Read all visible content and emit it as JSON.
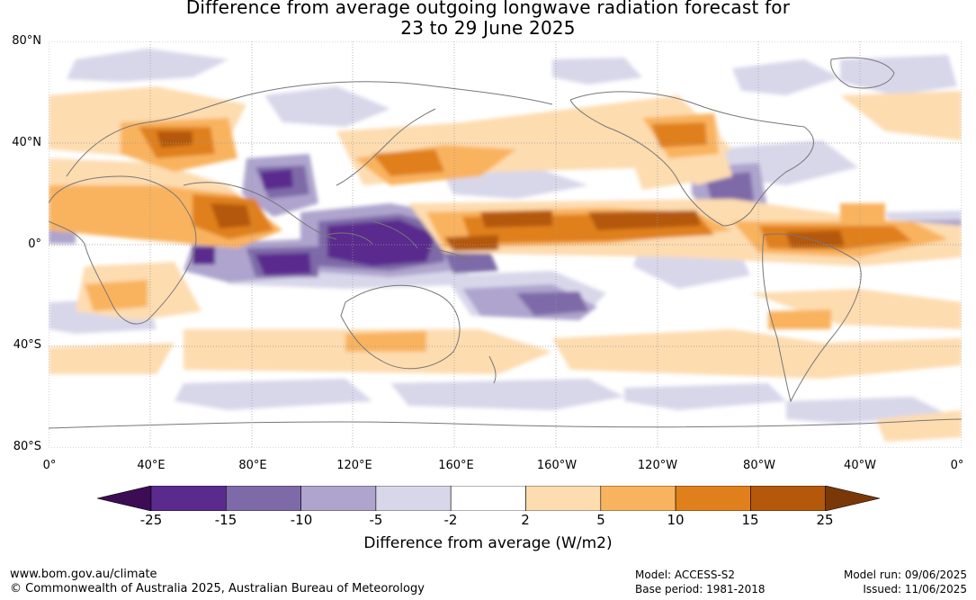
{
  "title": {
    "line1": "Difference from average outgoing longwave radiation forecast for",
    "line2": "23 to 29 June 2025"
  },
  "map": {
    "lat_labels": [
      "80°N",
      "40°N",
      "0°",
      "40°S",
      "80°S"
    ],
    "lon_labels": [
      "0°",
      "40°E",
      "80°E",
      "120°E",
      "160°E",
      "160°W",
      "120°W",
      "80°W",
      "40°W",
      "0°"
    ],
    "coastline_color": "#777777",
    "grid_color": "#999999"
  },
  "colorbar": {
    "title": "Difference from average (W/m2)",
    "ticks": [
      "-25",
      "-15",
      "-10",
      "-5",
      "-2",
      "2",
      "5",
      "10",
      "15",
      "25"
    ],
    "colors": [
      "#3c0c54",
      "#5a2a8e",
      "#7e6aa8",
      "#aea4cd",
      "#d8d7ea",
      "#ffffff",
      "#fddcb0",
      "#f9b35e",
      "#e0801c",
      "#b4590b",
      "#7a3808"
    ]
  },
  "footer": {
    "website": "www.bom.gov.au/climate",
    "copyright": "© Commonwealth of Australia 2025, Australian Bureau of Meteorology",
    "model": "Model: ACCESS-S2",
    "base_period": "Base period: 1981-2018",
    "model_run": "Model run: 09/06/2025",
    "issued": "Issued: 11/06/2025"
  }
}
